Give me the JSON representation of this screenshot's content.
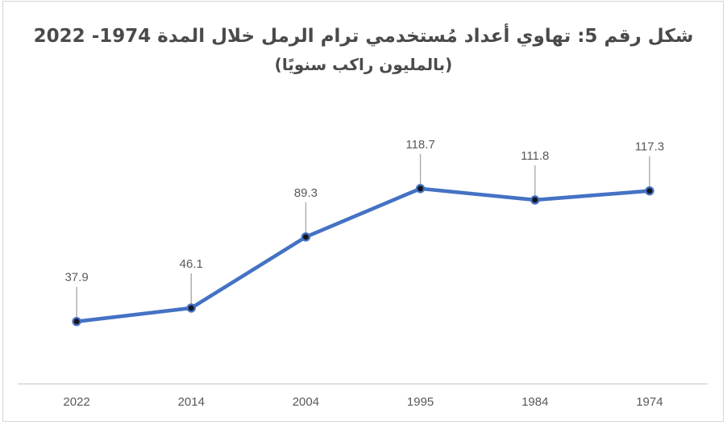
{
  "title": {
    "line1": "شكل رقم 5: تهاوي أعداد مُستخدمي ترام الرمل خلال المدة 1974- 2022",
    "line2": "(بالمليون راكب سنويًا)"
  },
  "chart_data": {
    "type": "line",
    "categories": [
      "2022",
      "2014",
      "2004",
      "1995",
      "1984",
      "1974"
    ],
    "values": [
      37.9,
      46.1,
      89.3,
      118.7,
      111.8,
      117.3
    ],
    "data_labels": [
      "37.9",
      "46.1",
      "89.3",
      "118.7",
      "111.8",
      "117.3"
    ],
    "title": "شكل رقم 5: تهاوي أعداد مُستخدمي ترام الرمل خلال المدة 1974- 2022",
    "subtitle": "(بالمليون راكب سنويًا)",
    "xlabel": "",
    "ylabel": "",
    "ylim": [
      0,
      150
    ],
    "layout": {
      "grid": false,
      "legend": "none",
      "y_axis_visible": false,
      "x_axis_order": "newest-year-on-left",
      "data_labels_position": "above-with-leader-lines"
    }
  },
  "colors": {
    "series_line": "#4472C4",
    "marker_fill": "#16161d",
    "leader_line": "#ababab",
    "axis_line": "#d6d6d6",
    "label_text": "#595959",
    "title_text": "#4a4a4a",
    "frame_border": "#d5d5d5",
    "background": "#ffffff"
  }
}
